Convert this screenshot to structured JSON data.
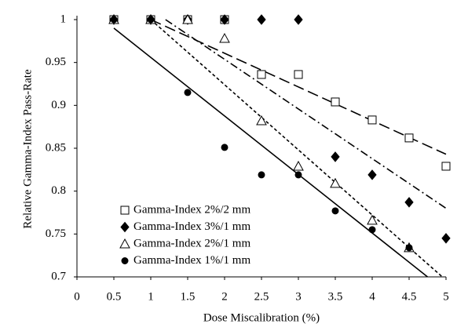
{
  "chart_data": {
    "type": "scatter",
    "x_label": "Dose Miscalibration (%)",
    "y_label": "Relative Gamma-Index Pass-Rate",
    "xlim": [
      0,
      5
    ],
    "ylim": [
      0.7,
      1
    ],
    "xticks": [
      0,
      0.5,
      1,
      1.5,
      2,
      2.5,
      3,
      3.5,
      4,
      4.5,
      5
    ],
    "yticks": [
      0.7,
      0.75,
      0.8,
      0.85,
      0.9,
      0.95,
      1
    ],
    "grid": false,
    "legend": "lower left",
    "series": [
      {
        "name": "Gamma-Index 2%/2 mm",
        "color": "#000000",
        "marker": "square",
        "filled": false,
        "x": [
          0.5,
          1,
          1.5,
          2,
          2.5,
          3,
          3.5,
          4,
          4.5,
          5
        ],
        "values": [
          1,
          1,
          1,
          1,
          0.936,
          0.936,
          0.904,
          0.883,
          0.862,
          0.829
        ],
        "trendline": {
          "dash": "14 6",
          "x": [
            1,
            5
          ],
          "values": [
            1,
            0.843
          ]
        }
      },
      {
        "name": "Gamma-Index 3%/1 mm",
        "color": "#000000",
        "marker": "diamond",
        "filled": true,
        "x": [
          0.5,
          1,
          1.5,
          2,
          2.5,
          3,
          3.5,
          4,
          4.5,
          5
        ],
        "values": [
          1,
          1,
          1,
          1,
          1,
          1,
          0.84,
          0.819,
          0.787,
          0.745
        ],
        "trendline": {
          "dash": "10 4 2 4",
          "x": [
            1.2,
            5
          ],
          "values": [
            1,
            0.78
          ]
        }
      },
      {
        "name": "Gamma-Index 2%/1 mm",
        "color": "#000000",
        "marker": "triangle",
        "filled": false,
        "x": [
          0.5,
          1,
          1.5,
          2,
          2.5,
          3,
          3.5,
          4,
          4.5
        ],
        "values": [
          1,
          1,
          1,
          0.978,
          0.882,
          0.829,
          0.809,
          0.766,
          0.734
        ],
        "trendline": {
          "dash": "4 3",
          "x": [
            1,
            4.95
          ],
          "values": [
            1,
            0.7
          ]
        }
      },
      {
        "name": "Gamma-Index 1%/1 mm",
        "color": "#000000",
        "marker": "circle",
        "filled": true,
        "x": [
          0.5,
          1,
          1.5,
          2,
          2.5,
          3,
          3.5,
          4,
          4.5
        ],
        "values": [
          1,
          1,
          0.915,
          0.851,
          0.819,
          0.819,
          0.777,
          0.755,
          0.734
        ],
        "trendline": {
          "dash": "none",
          "x": [
            0.5,
            4.75
          ],
          "values": [
            0.99,
            0.7
          ]
        }
      }
    ]
  }
}
